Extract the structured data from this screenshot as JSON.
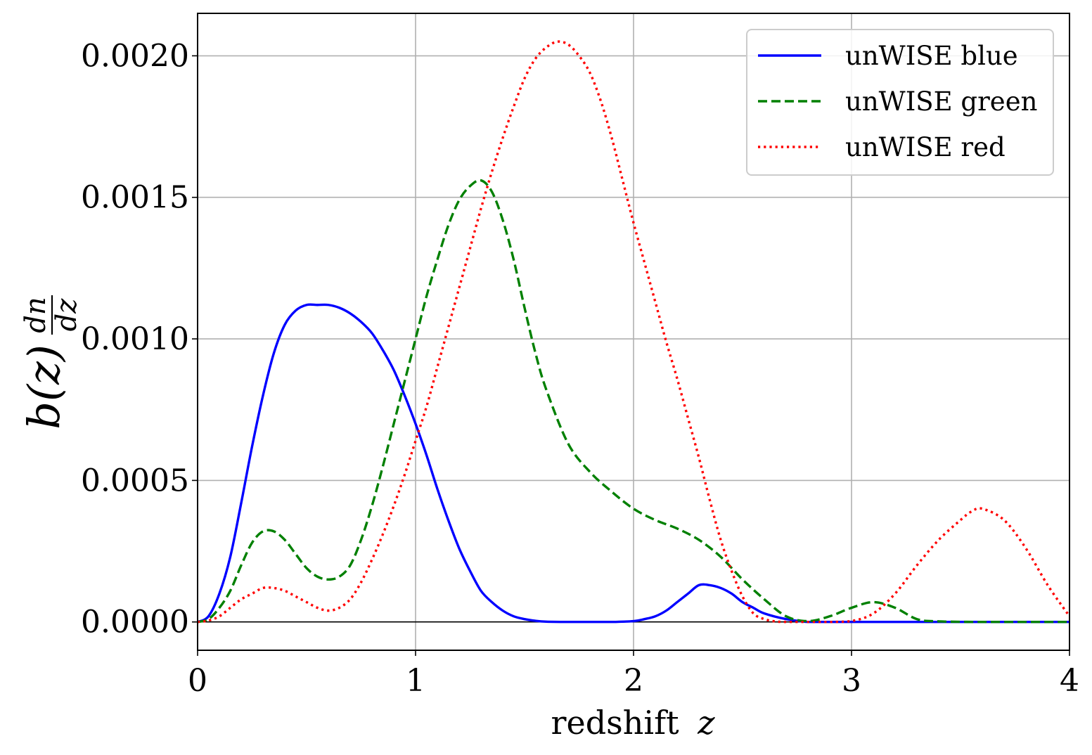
{
  "chart_data": {
    "type": "line",
    "xlabel": "redshift z",
    "xlabel_text": "redshift",
    "xlabel_symbol": "z",
    "ylabel": "b(z) dn/dz",
    "xlim": [
      0,
      4
    ],
    "ylim": [
      -0.0001,
      0.00215
    ],
    "xticks": [
      0,
      1,
      2,
      3,
      4
    ],
    "xtick_labels": [
      "0",
      "1",
      "2",
      "3",
      "4"
    ],
    "yticks": [
      0.0,
      0.0005,
      0.001,
      0.0015,
      0.002
    ],
    "ytick_labels": [
      "0.0000",
      "0.0005",
      "0.0010",
      "0.0015",
      "0.0020"
    ],
    "grid": true,
    "legend_position": "top-right",
    "series": [
      {
        "name": "unWISE blue",
        "color": "#0000ff",
        "style": "solid",
        "x": [
          0.0,
          0.05,
          0.1,
          0.15,
          0.2,
          0.25,
          0.3,
          0.35,
          0.4,
          0.45,
          0.5,
          0.55,
          0.6,
          0.65,
          0.7,
          0.75,
          0.8,
          0.85,
          0.9,
          0.95,
          1.0,
          1.05,
          1.1,
          1.15,
          1.2,
          1.25,
          1.3,
          1.35,
          1.4,
          1.45,
          1.5,
          1.55,
          1.6,
          1.7,
          1.8,
          1.9,
          2.0,
          2.05,
          2.1,
          2.15,
          2.2,
          2.25,
          2.3,
          2.35,
          2.4,
          2.45,
          2.5,
          2.55,
          2.6,
          2.7,
          2.8,
          2.9,
          3.0,
          3.5,
          4.0
        ],
        "y": [
          0.0,
          2e-05,
          0.0001,
          0.00023,
          0.00042,
          0.00062,
          0.0008,
          0.00095,
          0.00105,
          0.0011,
          0.00112,
          0.00112,
          0.00112,
          0.00111,
          0.00109,
          0.00106,
          0.00102,
          0.00096,
          0.00089,
          0.0008,
          0.0007,
          0.00059,
          0.00047,
          0.00036,
          0.00026,
          0.00018,
          0.00011,
          7e-05,
          4e-05,
          2e-05,
          1e-05,
          4e-06,
          1e-06,
          0.0,
          0.0,
          0.0,
          3e-06,
          1e-05,
          2e-05,
          4e-05,
          7e-05,
          0.0001,
          0.00013,
          0.00013,
          0.00012,
          0.0001,
          7e-05,
          5e-05,
          3e-05,
          1e-05,
          0.0,
          0.0,
          0.0,
          0.0,
          0.0
        ]
      },
      {
        "name": "unWISE green",
        "color": "#008000",
        "style": "dashed",
        "x": [
          0.0,
          0.05,
          0.1,
          0.15,
          0.2,
          0.25,
          0.3,
          0.35,
          0.4,
          0.45,
          0.5,
          0.55,
          0.6,
          0.65,
          0.7,
          0.75,
          0.8,
          0.85,
          0.9,
          0.95,
          1.0,
          1.05,
          1.1,
          1.15,
          1.2,
          1.25,
          1.3,
          1.35,
          1.4,
          1.45,
          1.5,
          1.55,
          1.6,
          1.7,
          1.8,
          1.9,
          2.0,
          2.1,
          2.2,
          2.3,
          2.4,
          2.5,
          2.6,
          2.7,
          2.8,
          2.9,
          3.0,
          3.1,
          3.2,
          3.3,
          3.4,
          3.6,
          3.8,
          4.0
        ],
        "y": [
          0.0,
          1e-05,
          5e-05,
          0.00011,
          0.0002,
          0.00028,
          0.00032,
          0.00032,
          0.00029,
          0.00024,
          0.00019,
          0.00016,
          0.00015,
          0.00016,
          0.0002,
          0.00029,
          0.00041,
          0.00055,
          0.0007,
          0.00085,
          0.001,
          0.00115,
          0.00128,
          0.0014,
          0.00149,
          0.00154,
          0.00156,
          0.00152,
          0.00142,
          0.00128,
          0.00111,
          0.00095,
          0.00082,
          0.00063,
          0.00053,
          0.00046,
          0.0004,
          0.00036,
          0.00033,
          0.00029,
          0.00023,
          0.00015,
          8e-05,
          2e-05,
          3e-06,
          2e-05,
          5e-05,
          7e-05,
          5e-05,
          1e-05,
          2e-06,
          0.0,
          0.0,
          0.0
        ]
      },
      {
        "name": "unWISE red",
        "color": "#ff0000",
        "style": "dotted",
        "x": [
          0.0,
          0.05,
          0.1,
          0.15,
          0.2,
          0.25,
          0.3,
          0.35,
          0.4,
          0.45,
          0.5,
          0.55,
          0.6,
          0.65,
          0.7,
          0.75,
          0.8,
          0.85,
          0.9,
          0.95,
          1.0,
          1.05,
          1.1,
          1.15,
          1.2,
          1.25,
          1.3,
          1.35,
          1.4,
          1.45,
          1.5,
          1.55,
          1.6,
          1.65,
          1.7,
          1.75,
          1.8,
          1.85,
          1.9,
          1.95,
          2.0,
          2.05,
          2.1,
          2.15,
          2.2,
          2.25,
          2.3,
          2.35,
          2.4,
          2.45,
          2.5,
          2.55,
          2.6,
          2.65,
          2.7,
          2.8,
          2.9,
          3.0,
          3.1,
          3.2,
          3.3,
          3.4,
          3.5,
          3.55,
          3.6,
          3.7,
          3.8,
          3.9,
          4.0
        ],
        "y": [
          0.0,
          5e-06,
          2e-05,
          5e-05,
          8e-05,
          0.0001,
          0.00012,
          0.00012,
          0.00011,
          9e-05,
          7e-05,
          5e-05,
          4e-05,
          5e-05,
          8e-05,
          0.00014,
          0.00022,
          0.00031,
          0.00041,
          0.00052,
          0.00064,
          0.00076,
          0.0009,
          0.00104,
          0.00118,
          0.00132,
          0.00146,
          0.00159,
          0.00171,
          0.00182,
          0.00192,
          0.00199,
          0.00203,
          0.00205,
          0.00204,
          0.002,
          0.00194,
          0.00184,
          0.00171,
          0.00156,
          0.00141,
          0.00127,
          0.00113,
          0.00099,
          0.00086,
          0.00072,
          0.00058,
          0.00043,
          0.00029,
          0.00018,
          9e-05,
          3e-05,
          1e-05,
          2e-06,
          0.0,
          0.0,
          0.0,
          3e-06,
          3e-05,
          0.0001,
          0.0002,
          0.00029,
          0.00036,
          0.00039,
          0.0004,
          0.00036,
          0.00026,
          0.00013,
          2e-05
        ]
      }
    ]
  }
}
